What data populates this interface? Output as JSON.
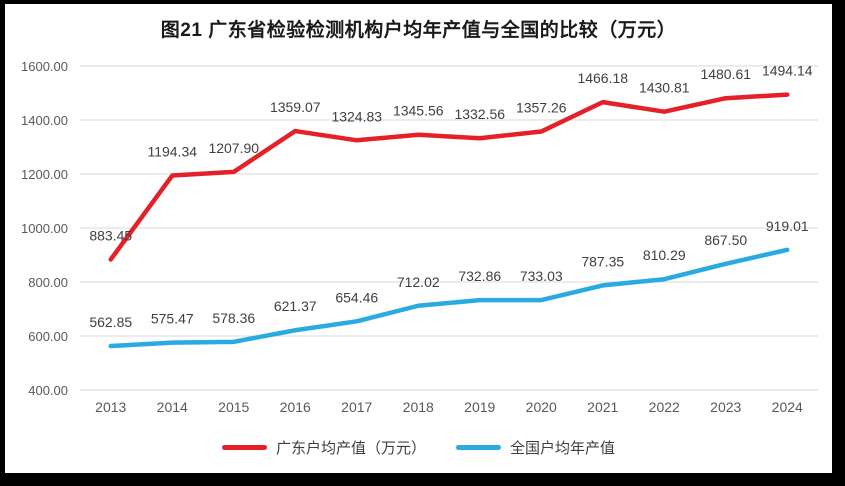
{
  "title": "图21  广东省检验检测机构户均年产值与全国的比较（万元）",
  "chart_data": {
    "type": "line",
    "title": "图21  广东省检验检测机构户均年产值与全国的比较（万元）",
    "categories": [
      "2013",
      "2014",
      "2015",
      "2016",
      "2017",
      "2018",
      "2019",
      "2020",
      "2021",
      "2022",
      "2023",
      "2024"
    ],
    "series": [
      {
        "name": "广东户均产值（万元）",
        "color": "#e42028",
        "values": [
          883.45,
          1194.34,
          1207.9,
          1359.07,
          1324.83,
          1345.56,
          1332.56,
          1357.26,
          1466.18,
          1430.81,
          1480.61,
          1494.14
        ]
      },
      {
        "name": "全国户均年产值",
        "color": "#29abe2",
        "values": [
          562.85,
          575.47,
          578.36,
          621.37,
          654.46,
          712.02,
          732.86,
          733.03,
          787.35,
          810.29,
          867.5,
          919.01
        ]
      }
    ],
    "ylim": [
      400,
      1600
    ],
    "ytick_step": 200,
    "yticks": [
      "400.00",
      "600.00",
      "800.00",
      "1000.00",
      "1200.00",
      "1400.00",
      "1600.00"
    ],
    "grid": "horizontal",
    "data_labels": true,
    "legend_position": "bottom"
  },
  "colors": {
    "grid": "#d9d9d9",
    "axis_text": "#595959",
    "data_label_text": "#404040",
    "frame": "#000000",
    "background": "#ffffff"
  }
}
